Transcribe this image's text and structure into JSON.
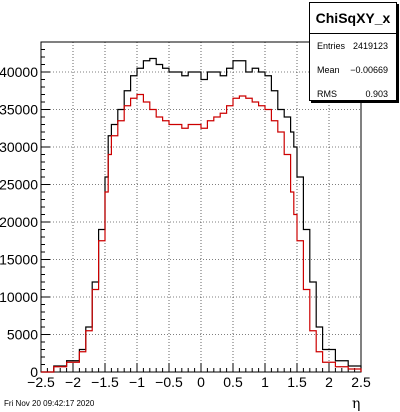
{
  "stats": {
    "title": "ChiSqXY_x",
    "rows": [
      {
        "label": "Entries",
        "value": "2419123"
      },
      {
        "label": "Mean",
        "value": "−0.00669"
      },
      {
        "label": "RMS",
        "value": "0.903"
      }
    ]
  },
  "footer": {
    "date": "Fri Nov 20 09:42:17 2020"
  },
  "chart_data": {
    "type": "line",
    "title": "",
    "xlabel": "η",
    "ylabel": "",
    "xlim": [
      -2.5,
      2.5
    ],
    "ylim": [
      0,
      44000
    ],
    "grid": true,
    "xticks": [
      -2.5,
      -2,
      -1.5,
      -1,
      -0.5,
      0,
      0.5,
      1,
      1.5,
      2,
      2.5
    ],
    "xtick_labels": [
      "−2.5",
      "−2",
      "−1.5",
      "−1",
      "−0.5",
      "0",
      "0.5",
      "1",
      "1.5",
      "2",
      "2.5"
    ],
    "yticks": [
      0,
      5000,
      10000,
      15000,
      20000,
      25000,
      30000,
      35000,
      40000
    ],
    "ytick_labels": [
      "0",
      "5000",
      "10000",
      "15000",
      "20000",
      "25000",
      "30000",
      "35000",
      "40000"
    ],
    "x": [
      -2.5,
      -2.3,
      -2.1,
      -1.9,
      -1.8,
      -1.7,
      -1.6,
      -1.5,
      -1.45,
      -1.4,
      -1.3,
      -1.2,
      -1.1,
      -1.0,
      -0.9,
      -0.8,
      -0.7,
      -0.6,
      -0.5,
      -0.4,
      -0.3,
      -0.2,
      -0.1,
      0.0,
      0.1,
      0.2,
      0.3,
      0.4,
      0.5,
      0.6,
      0.7,
      0.8,
      0.9,
      1.0,
      1.1,
      1.2,
      1.3,
      1.4,
      1.45,
      1.5,
      1.6,
      1.7,
      1.8,
      1.9,
      2.1,
      2.3,
      2.5
    ],
    "series": [
      {
        "color": "#000000",
        "values": [
          0,
          800,
          1500,
          3000,
          6000,
          12000,
          19000,
          26000,
          31500,
          33000,
          35000,
          37500,
          39500,
          40500,
          41500,
          41800,
          41000,
          40500,
          40000,
          40000,
          39500,
          40000,
          40000,
          39000,
          40000,
          40000,
          39500,
          40500,
          41500,
          41500,
          40000,
          40500,
          40000,
          39500,
          37500,
          35000,
          34000,
          32000,
          30000,
          26000,
          19000,
          12000,
          6000,
          3000,
          1500,
          800,
          0
        ]
      },
      {
        "color": "#cc0000",
        "values": [
          0,
          700,
          1300,
          2700,
          5500,
          11000,
          17500,
          24000,
          29000,
          31500,
          33500,
          35500,
          36500,
          37000,
          36000,
          35000,
          34000,
          33500,
          33000,
          33000,
          32500,
          33000,
          33000,
          32500,
          33500,
          34000,
          34500,
          35500,
          36500,
          36800,
          36500,
          36000,
          35500,
          35000,
          33500,
          32000,
          29000,
          24000,
          21000,
          17500,
          11000,
          5500,
          2700,
          1300,
          700,
          400,
          0
        ]
      }
    ]
  }
}
